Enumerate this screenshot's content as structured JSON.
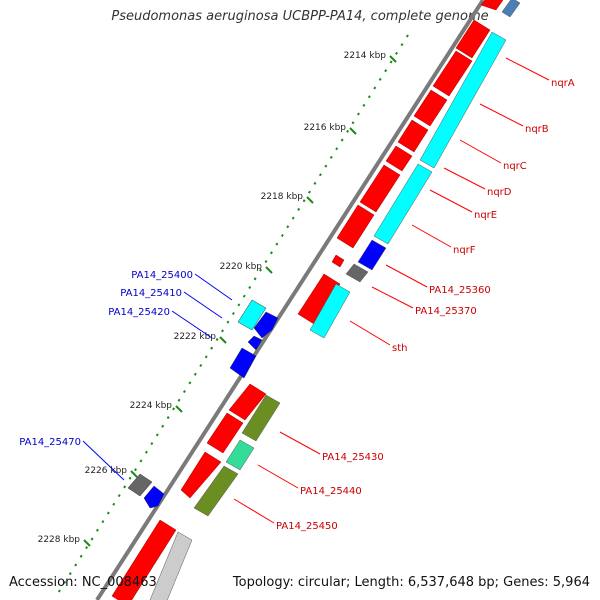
{
  "title": "Pseudomonas aeruginosa UCBPP-PA14, complete genome",
  "footer": {
    "accession": "Accession: NC_008463",
    "summary": "Topology: circular; Length: 6,537,648 bp; Genes: 5,964"
  },
  "colors": {
    "backbone": "#888888",
    "tick": "#1a8a1a",
    "red_gene": "#ff0000",
    "cyan_gene": "#00ffff",
    "blue_gene": "#0000ff",
    "olive_gene": "#6b8e23",
    "gray_gene": "#666666",
    "label_red": "#cc0000",
    "label_blue": "#0000cc"
  },
  "ticks": [
    {
      "label": "2214 kbp"
    },
    {
      "label": "2216 kbp"
    },
    {
      "label": "2218 kbp"
    },
    {
      "label": "2220 kbp"
    },
    {
      "label": "2222 kbp"
    },
    {
      "label": "2224 kbp"
    },
    {
      "label": "2226 kbp"
    },
    {
      "label": "2228 kbp"
    }
  ],
  "right_labels": [
    {
      "text": "nqrA"
    },
    {
      "text": "nqrB"
    },
    {
      "text": "nqrC"
    },
    {
      "text": "nqrD"
    },
    {
      "text": "nqrE"
    },
    {
      "text": "nqrF"
    },
    {
      "text": "PA14_25360"
    },
    {
      "text": "PA14_25370"
    },
    {
      "text": "sth"
    },
    {
      "text": "PA14_25430"
    },
    {
      "text": "PA14_25440"
    },
    {
      "text": "PA14_25450"
    }
  ],
  "left_labels": [
    {
      "text": "PA14_25400"
    },
    {
      "text": "PA14_25410"
    },
    {
      "text": "PA14_25420"
    },
    {
      "text": "PA14_25470"
    }
  ]
}
